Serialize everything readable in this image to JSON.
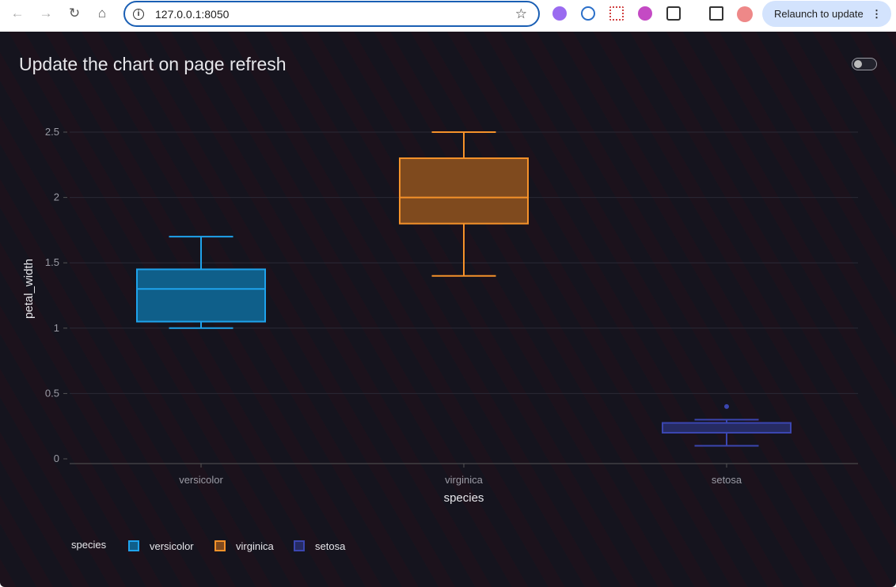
{
  "browser": {
    "url": "127.0.0.1:8050",
    "relaunch_label": "Relaunch to update"
  },
  "page": {
    "title": "Update the chart on page refresh",
    "toggle_on": false
  },
  "chart_data": {
    "type": "box",
    "xlabel": "species",
    "ylabel": "petal_width",
    "ylim": [
      -0.05,
      2.75
    ],
    "yticks": [
      "0",
      "0.5",
      "1",
      "1.5",
      "2",
      "2.5"
    ],
    "yticks_values": [
      0,
      0.5,
      1,
      1.5,
      2,
      2.5
    ],
    "categories": [
      "versicolor",
      "virginica",
      "setosa"
    ],
    "legend": {
      "title": "species",
      "placement": "bottom-left"
    },
    "series": [
      {
        "name": "versicolor",
        "color": "#1fa3ec",
        "fill": "#0f5f8a",
        "min": 1.0,
        "q1": 1.05,
        "median": 1.3,
        "q3": 1.45,
        "max": 1.7,
        "outliers": []
      },
      {
        "name": "virginica",
        "color": "#f5922a",
        "fill": "#7f4a1e",
        "min": 1.4,
        "q1": 1.8,
        "median": 2.0,
        "q3": 2.3,
        "max": 2.5,
        "outliers": []
      },
      {
        "name": "setosa",
        "color": "#3b46b0",
        "fill": "#262b63",
        "min": 0.1,
        "q1": 0.2,
        "median": 0.2,
        "q3": 0.275,
        "max": 0.3,
        "outliers": [
          0.4
        ]
      }
    ]
  }
}
